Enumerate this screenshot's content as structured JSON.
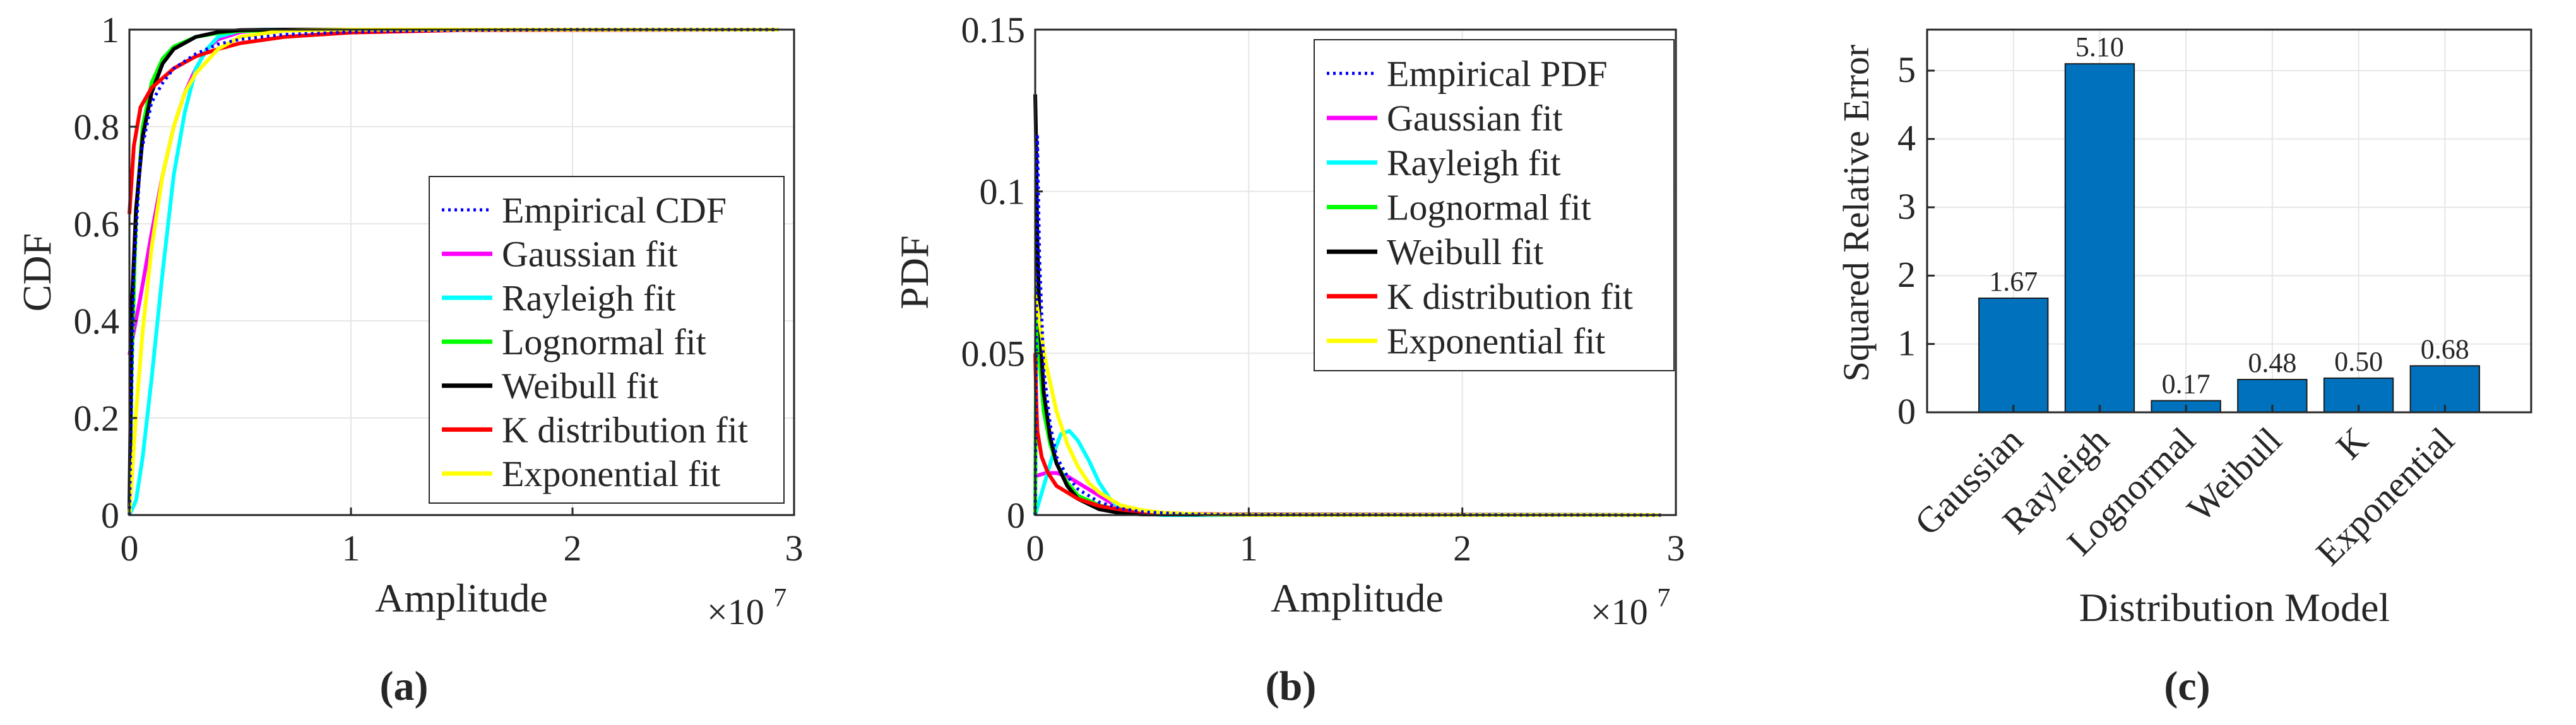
{
  "chart_data": [
    {
      "type": "line",
      "panel_label": "(a)",
      "xlabel": "Amplitude",
      "ylabel": "CDF",
      "x_multiplier": "×10",
      "x_multiplier_exp": "7",
      "xlim": [
        0,
        3
      ],
      "ylim": [
        0,
        1
      ],
      "xticks": [
        0,
        1,
        2,
        3
      ],
      "yticks": [
        0,
        0.2,
        0.4,
        0.6,
        0.8,
        1
      ],
      "ytick_labels": [
        "0",
        "0.2",
        "0.4",
        "0.6",
        "0.8",
        "1"
      ],
      "grid": true,
      "legend_position": "bottom-right",
      "series": [
        {
          "name": "Empirical CDF",
          "color": "#0000FF",
          "dash": "dotted",
          "x": [
            0,
            0.02,
            0.05,
            0.1,
            0.15,
            0.2,
            0.3,
            0.4,
            0.5,
            0.7,
            1.0,
            1.5,
            2.0,
            2.93
          ],
          "y": [
            0.0,
            0.5,
            0.74,
            0.85,
            0.89,
            0.92,
            0.95,
            0.97,
            0.98,
            0.99,
            0.995,
            0.999,
            1.0,
            1.0
          ]
        },
        {
          "name": "Gaussian fit",
          "color": "#FF00FF",
          "dash": "solid",
          "x": [
            0,
            0.05,
            0.1,
            0.15,
            0.2,
            0.25,
            0.3,
            0.35,
            0.4,
            0.5,
            0.6,
            0.8,
            1.0,
            2.93
          ],
          "y": [
            0.33,
            0.45,
            0.58,
            0.7,
            0.8,
            0.87,
            0.92,
            0.96,
            0.98,
            0.995,
            1.0,
            1.0,
            1.0,
            1.0
          ]
        },
        {
          "name": "Rayleigh fit",
          "color": "#00FFFF",
          "dash": "solid",
          "x": [
            0,
            0.03,
            0.06,
            0.1,
            0.15,
            0.2,
            0.25,
            0.3,
            0.35,
            0.4,
            0.5,
            0.6,
            0.8,
            1.0,
            2.93
          ],
          "y": [
            0.0,
            0.03,
            0.12,
            0.28,
            0.5,
            0.7,
            0.83,
            0.92,
            0.96,
            0.985,
            0.998,
            1.0,
            1.0,
            1.0,
            1.0
          ]
        },
        {
          "name": "Lognormal fit",
          "color": "#00FF00",
          "dash": "solid",
          "x": [
            0,
            0.01,
            0.03,
            0.06,
            0.1,
            0.15,
            0.2,
            0.3,
            0.4,
            0.5,
            0.7,
            1.0,
            2.93
          ],
          "y": [
            0.0,
            0.3,
            0.62,
            0.8,
            0.89,
            0.94,
            0.965,
            0.985,
            0.993,
            0.997,
            0.999,
            1.0,
            1.0
          ]
        },
        {
          "name": "Weibull fit",
          "color": "#000000",
          "dash": "solid",
          "x": [
            0,
            0.01,
            0.03,
            0.06,
            0.1,
            0.15,
            0.2,
            0.3,
            0.4,
            0.5,
            0.7,
            1.0,
            2.93
          ],
          "y": [
            0.0,
            0.42,
            0.63,
            0.78,
            0.87,
            0.93,
            0.96,
            0.985,
            0.995,
            0.999,
            1.0,
            1.0,
            1.0
          ]
        },
        {
          "name": "K distribution fit",
          "color": "#FF0000",
          "dash": "solid",
          "x": [
            0,
            0.02,
            0.05,
            0.1,
            0.15,
            0.2,
            0.3,
            0.4,
            0.5,
            0.7,
            1.0,
            1.5,
            2.93
          ],
          "y": [
            0.62,
            0.76,
            0.84,
            0.88,
            0.9,
            0.92,
            0.945,
            0.96,
            0.972,
            0.985,
            0.994,
            0.999,
            1.0
          ]
        },
        {
          "name": "Exponential fit",
          "color": "#FFFF00",
          "dash": "solid",
          "x": [
            0,
            0.03,
            0.06,
            0.1,
            0.15,
            0.2,
            0.25,
            0.3,
            0.4,
            0.5,
            0.7,
            1.0,
            2.93
          ],
          "y": [
            0.0,
            0.21,
            0.38,
            0.55,
            0.7,
            0.8,
            0.87,
            0.91,
            0.96,
            0.985,
            0.998,
            1.0,
            1.0
          ]
        }
      ]
    },
    {
      "type": "line",
      "panel_label": "(b)",
      "xlabel": "Amplitude",
      "ylabel": "PDF",
      "x_multiplier": "×10",
      "x_multiplier_exp": "7",
      "xlim": [
        0,
        3
      ],
      "ylim": [
        0,
        0.15
      ],
      "xticks": [
        0,
        1,
        2,
        3
      ],
      "yticks": [
        0,
        0.05,
        0.1,
        0.15
      ],
      "ytick_labels": [
        "0",
        "0.05",
        "0.1",
        "0.15"
      ],
      "grid": true,
      "legend_position": "top-right",
      "series": [
        {
          "name": "Empirical PDF",
          "color": "#0000FF",
          "dash": "dotted",
          "x": [
            0,
            0.01,
            0.02,
            0.04,
            0.07,
            0.1,
            0.15,
            0.2,
            0.3,
            0.4,
            0.5,
            0.7,
            1.0,
            2.93
          ],
          "y": [
            0.0,
            0.117,
            0.08,
            0.045,
            0.028,
            0.018,
            0.012,
            0.008,
            0.004,
            0.002,
            0.001,
            0.0003,
            0.0001,
            0.0
          ]
        },
        {
          "name": "Gaussian fit",
          "color": "#FF00FF",
          "dash": "solid",
          "x": [
            0,
            0.05,
            0.1,
            0.15,
            0.2,
            0.25,
            0.3,
            0.35,
            0.4,
            0.5,
            0.6,
            0.8,
            2.93
          ],
          "y": [
            0.012,
            0.013,
            0.013,
            0.012,
            0.01,
            0.008,
            0.006,
            0.004,
            0.0025,
            0.001,
            0.0003,
            0.0,
            0.0
          ]
        },
        {
          "name": "Rayleigh fit",
          "color": "#00FFFF",
          "dash": "solid",
          "x": [
            0,
            0.04,
            0.08,
            0.12,
            0.16,
            0.2,
            0.25,
            0.3,
            0.35,
            0.4,
            0.5,
            0.6,
            2.93
          ],
          "y": [
            0.0,
            0.009,
            0.018,
            0.025,
            0.026,
            0.023,
            0.017,
            0.01,
            0.005,
            0.002,
            0.0005,
            0.0,
            0.0
          ]
        },
        {
          "name": "Lognormal fit",
          "color": "#00FF00",
          "dash": "solid",
          "x": [
            0,
            0.005,
            0.01,
            0.02,
            0.04,
            0.07,
            0.1,
            0.15,
            0.2,
            0.3,
            0.4,
            0.5,
            0.7,
            2.93
          ],
          "y": [
            0.0,
            0.07,
            0.062,
            0.048,
            0.032,
            0.022,
            0.016,
            0.01,
            0.006,
            0.003,
            0.0015,
            0.0008,
            0.0002,
            0.0
          ]
        },
        {
          "name": "Weibull fit",
          "color": "#000000",
          "dash": "solid",
          "x": [
            0,
            0.003,
            0.01,
            0.02,
            0.04,
            0.07,
            0.1,
            0.15,
            0.2,
            0.3,
            0.4,
            0.5,
            2.93
          ],
          "y": [
            0.13,
            0.12,
            0.085,
            0.06,
            0.038,
            0.024,
            0.016,
            0.009,
            0.005,
            0.0018,
            0.0006,
            0.0002,
            0.0
          ]
        },
        {
          "name": "K distribution fit",
          "color": "#FF0000",
          "dash": "solid",
          "x": [
            0,
            0.005,
            0.01,
            0.03,
            0.06,
            0.1,
            0.15,
            0.2,
            0.3,
            0.4,
            0.5,
            0.7,
            1.0,
            2.93
          ],
          "y": [
            0.05,
            0.035,
            0.026,
            0.018,
            0.013,
            0.009,
            0.007,
            0.005,
            0.0028,
            0.0017,
            0.001,
            0.0004,
            0.0001,
            0.0
          ]
        },
        {
          "name": "Exponential fit",
          "color": "#FFFF00",
          "dash": "solid",
          "x": [
            0,
            0.05,
            0.1,
            0.15,
            0.2,
            0.25,
            0.3,
            0.4,
            0.5,
            0.6,
            0.8,
            1.0,
            2.93
          ],
          "y": [
            0.068,
            0.047,
            0.032,
            0.022,
            0.015,
            0.01,
            0.007,
            0.003,
            0.0015,
            0.0007,
            0.0002,
            0.0,
            0.0
          ]
        }
      ]
    },
    {
      "type": "bar",
      "panel_label": "(c)",
      "xlabel": "Distribution Model",
      "ylabel": "Squared Relative Error",
      "categories": [
        "Gaussian",
        "Rayleigh",
        "Lognormal",
        "Weibull",
        "K",
        "Exponential"
      ],
      "values": [
        1.67,
        5.1,
        0.17,
        0.48,
        0.5,
        0.68
      ],
      "value_labels": [
        "1.67",
        "5.10",
        "0.17",
        "0.48",
        "0.50",
        "0.68"
      ],
      "ylim": [
        0,
        5.6
      ],
      "yticks": [
        0,
        1,
        2,
        3,
        4,
        5
      ],
      "bar_color": "#0072BD",
      "grid": true
    }
  ]
}
